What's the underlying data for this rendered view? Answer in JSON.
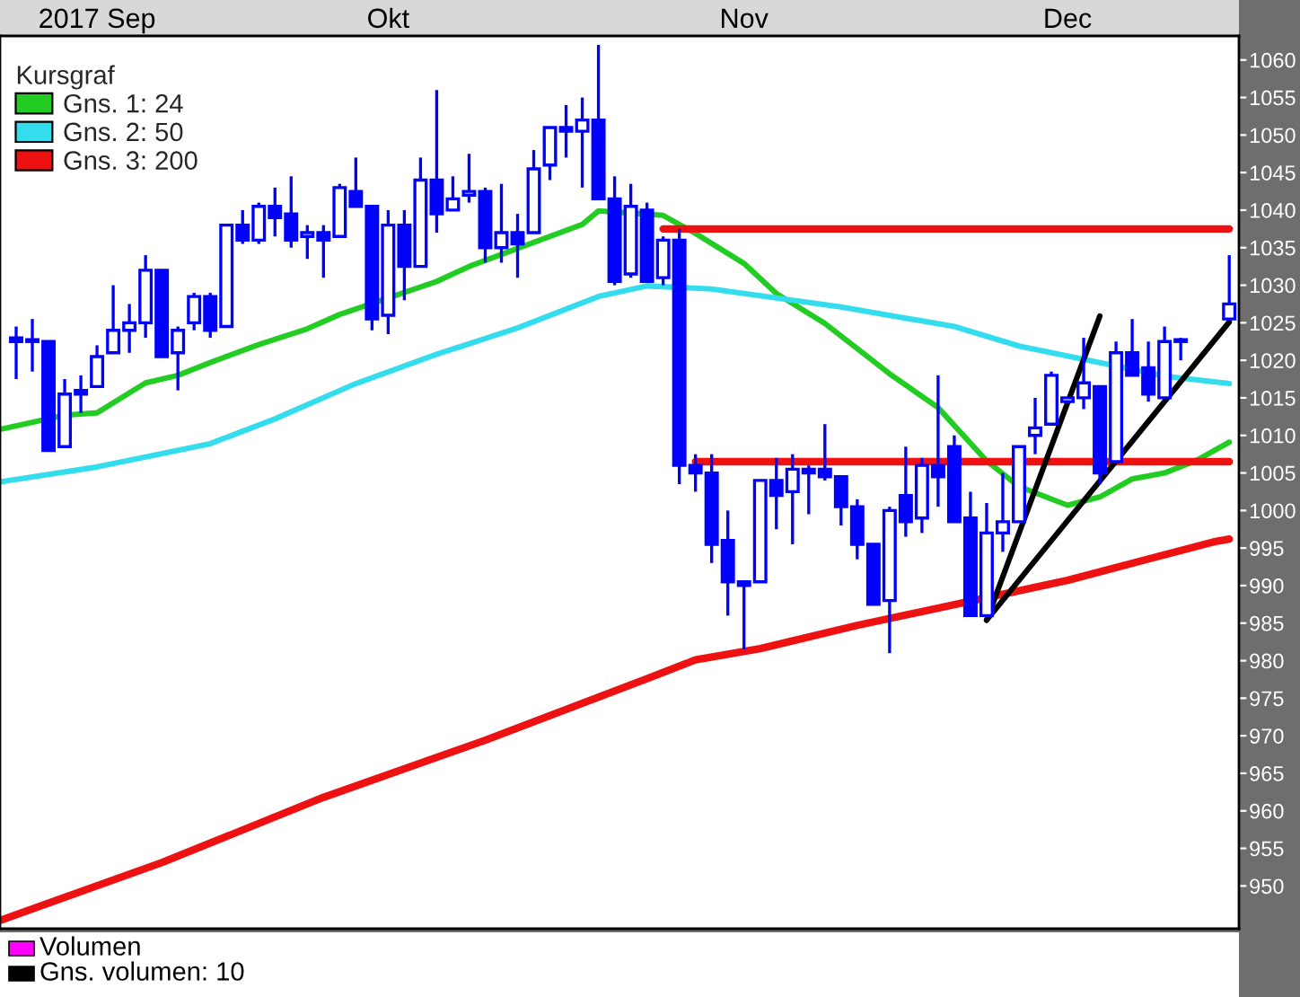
{
  "chart_data": {
    "type": "candlestick",
    "categories": [
      null,
      null,
      null,
      null,
      null,
      null,
      "2017 Sep",
      null,
      null,
      null,
      null,
      null,
      null,
      null,
      null,
      null,
      null,
      null,
      null,
      null,
      null,
      null,
      null,
      null,
      "Okt",
      null,
      null,
      null,
      null,
      null,
      null,
      null,
      null,
      null,
      null,
      null,
      null,
      null,
      null,
      null,
      null,
      null,
      null,
      null,
      null,
      null,
      "Nov",
      null,
      null,
      null,
      null,
      null,
      null,
      null,
      null,
      null,
      null,
      null,
      null,
      null,
      null,
      null,
      null,
      null,
      null,
      null,
      "Dec",
      null,
      null,
      null,
      null,
      null,
      null,
      null,
      null,
      null,
      null
    ],
    "ohlc": [
      null,
      [
        1023,
        1024.5,
        1017.5,
        1022.5
      ],
      [
        1022.5,
        1025.5,
        1018.5,
        1022.5
      ],
      [
        1022.5,
        1022.5,
        1008,
        1008
      ],
      [
        1008.5,
        1017.5,
        1008.5,
        1015.5
      ],
      [
        1016,
        1018,
        1013,
        1015.5
      ],
      [
        1016.5,
        1022,
        1016.5,
        1020.5
      ],
      [
        1021,
        1030,
        1021,
        1024
      ],
      [
        1024,
        1027.5,
        1021,
        1025
      ],
      [
        1025,
        1034,
        1023,
        1032
      ],
      [
        1032,
        1032,
        1020.5,
        1020.5
      ],
      [
        1021,
        1024.5,
        1016,
        1024
      ],
      [
        1025,
        1029,
        1024,
        1028.5
      ],
      [
        1028.5,
        1029,
        1023,
        1024
      ],
      [
        1024.5,
        1038,
        1024.5,
        1038
      ],
      [
        1038,
        1040,
        1035.5,
        1036
      ],
      [
        1036,
        1041,
        1035.5,
        1040.5
      ],
      [
        1040.5,
        1043,
        1036.5,
        1039
      ],
      [
        1039.5,
        1044.5,
        1035,
        1036
      ],
      [
        1036.5,
        1038,
        1033.5,
        1037
      ],
      [
        1037,
        1038,
        1031,
        1036
      ],
      [
        1036.5,
        1043.5,
        1036.5,
        1043
      ],
      [
        1042.5,
        1047,
        1040.5,
        1040.5
      ],
      [
        1040.5,
        1040.5,
        1024,
        1025.5
      ],
      [
        1026,
        1040,
        1023.5,
        1038
      ],
      [
        1038,
        1040,
        1028,
        1032.5
      ],
      [
        1032.5,
        1047,
        1032.5,
        1044
      ],
      [
        1044,
        1056,
        1037,
        1039.5
      ],
      [
        1040,
        1044.5,
        1040,
        1041.5
      ],
      [
        1042,
        1047.5,
        1041,
        1042.5
      ],
      [
        1042.5,
        1043,
        1033,
        1035
      ],
      [
        1035,
        1043.5,
        1033,
        1037
      ],
      [
        1037,
        1039.5,
        1031,
        1035.5
      ],
      [
        1037,
        1048,
        1037,
        1045.5
      ],
      [
        1046,
        1051,
        1044,
        1051
      ],
      [
        1051,
        1054,
        1047,
        1050.5
      ],
      [
        1050.5,
        1055,
        1043,
        1052
      ],
      [
        1052,
        1062,
        1041.5,
        1041.5
      ],
      [
        1041.5,
        1044.5,
        1030,
        1030.5
      ],
      [
        1031.5,
        1043.5,
        1031,
        1040.5
      ],
      [
        1040,
        1041,
        1030.5,
        1030.5
      ],
      [
        1031,
        1036.5,
        1030,
        1036
      ],
      [
        1036,
        1037.5,
        1003.5,
        1006
      ],
      [
        1006,
        1007.5,
        1002.5,
        1005
      ],
      [
        1005,
        1007.5,
        993,
        995.5
      ],
      [
        996,
        1000,
        986,
        990.5
      ],
      [
        990.5,
        990.5,
        981.5,
        990
      ],
      [
        990.5,
        1004,
        990.5,
        1004
      ],
      [
        1004,
        1007,
        997.5,
        1002
      ],
      [
        1002.5,
        1007.5,
        995.5,
        1005.5
      ],
      [
        1005.5,
        1006,
        999.5,
        1005
      ],
      [
        1005.5,
        1011.5,
        1004,
        1004.5
      ],
      [
        1004.5,
        1004.5,
        998,
        1000.5
      ],
      [
        1000.5,
        1001.5,
        993.5,
        995.5
      ],
      [
        995.5,
        995.5,
        987.5,
        987.5
      ],
      [
        988,
        1000.5,
        981,
        1000
      ],
      [
        1002,
        1008.5,
        996.5,
        998.5
      ],
      [
        999,
        1007,
        997,
        1006
      ],
      [
        1006,
        1018,
        1000.5,
        1004.5
      ],
      [
        1008.5,
        1010,
        998.5,
        998.5
      ],
      [
        999,
        1002.5,
        986,
        986
      ],
      [
        986,
        1001,
        986,
        997
      ],
      [
        997,
        1005,
        994.5,
        998.5
      ],
      [
        998.5,
        1008.5,
        998.5,
        1008.5
      ],
      [
        1010,
        1015,
        1007.5,
        1011
      ],
      [
        1011.5,
        1018.5,
        1011.5,
        1018
      ],
      [
        1014.5,
        1015,
        1014.5,
        1015
      ],
      [
        1015,
        1023,
        1013.5,
        1017
      ],
      [
        1016.5,
        1016.5,
        1003.5,
        1005
      ],
      [
        1006.5,
        1022.5,
        1006.5,
        1021
      ],
      [
        1021,
        1025.5,
        1018,
        1018
      ],
      [
        1019,
        1022.5,
        1014.5,
        1015.5
      ],
      [
        1015,
        1024.5,
        1015,
        1022.5
      ],
      [
        1022.5,
        1023,
        1020,
        1022.5
      ],
      null,
      null,
      [
        1025.5,
        1034,
        1025.5,
        1027.5
      ]
    ],
    "color": "#0000ff",
    "series": [
      {
        "name": "Gns. 1: 24",
        "type": "line",
        "color": "#22cc22",
        "values": [
          1010.8,
          null,
          null,
          null,
          1012.7,
          null,
          1013,
          null,
          null,
          1017,
          null,
          1018,
          null,
          1019.7,
          null,
          null,
          1022.1,
          null,
          null,
          1024.2,
          null,
          1026.1,
          null,
          null,
          null,
          null,
          null,
          1030.5,
          null,
          1032.5,
          null,
          null,
          null,
          1035.7,
          null,
          null,
          1038.1,
          1039.9,
          null,
          null,
          null,
          1039.3,
          null,
          1036.9,
          null,
          null,
          1032.9,
          null,
          1028.9,
          null,
          null,
          1024.9,
          null,
          null,
          null,
          1018.2,
          null,
          null,
          1013.7,
          null,
          null,
          1006.6,
          null,
          1003.2,
          null,
          null,
          1000.7,
          null,
          1001.8,
          null,
          1004.2,
          null,
          1005,
          null,
          1006.7,
          null,
          1009.1
        ]
      },
      {
        "name": "Gns. 2: 50",
        "type": "line",
        "color": "#33ddee",
        "values": [
          1003.8,
          null,
          null,
          null,
          null,
          null,
          1005.8,
          null,
          null,
          null,
          null,
          null,
          null,
          1008.9,
          null,
          null,
          null,
          1012.2,
          null,
          null,
          null,
          null,
          1016.9,
          null,
          null,
          null,
          null,
          1020.8,
          null,
          null,
          null,
          null,
          1024.3,
          null,
          null,
          null,
          null,
          1028.5,
          null,
          null,
          1029.9,
          null,
          null,
          null,
          1029.5,
          null,
          null,
          null,
          1028.3,
          null,
          null,
          null,
          1027.1,
          null,
          null,
          null,
          null,
          null,
          null,
          1024.5,
          null,
          null,
          null,
          1021.9,
          null,
          null,
          null,
          null,
          1019.7,
          null,
          null,
          null,
          1017.9,
          null,
          null,
          null,
          1016.9
        ]
      },
      {
        "name": "Gns. 3: 200",
        "type": "line",
        "color": "#ee1111",
        "values": [
          945.4,
          null,
          null,
          null,
          null,
          null,
          null,
          null,
          null,
          null,
          953.1,
          null,
          null,
          null,
          null,
          null,
          null,
          null,
          null,
          null,
          961.8,
          null,
          null,
          null,
          null,
          null,
          null,
          null,
          null,
          null,
          969.4,
          null,
          null,
          null,
          null,
          null,
          null,
          null,
          null,
          null,
          977.6,
          null,
          null,
          980.1,
          null,
          null,
          null,
          981.6,
          null,
          null,
          null,
          null,
          null,
          984.7,
          null,
          null,
          null,
          null,
          null,
          null,
          null,
          null,
          null,
          null,
          null,
          null,
          990.7,
          null,
          null,
          null,
          null,
          null,
          null,
          null,
          null,
          995.8,
          996.2
        ]
      },
      {
        "type": "line",
        "color": "#ee1111",
        "values": [
          null,
          null,
          null,
          null,
          null,
          null,
          null,
          null,
          null,
          null,
          null,
          null,
          null,
          null,
          null,
          null,
          null,
          null,
          null,
          null,
          null,
          null,
          null,
          null,
          null,
          null,
          null,
          null,
          null,
          null,
          null,
          null,
          null,
          null,
          null,
          null,
          null,
          null,
          null,
          null,
          null,
          1037.5,
          null,
          null,
          null,
          null,
          null,
          null,
          null,
          null,
          null,
          null,
          null,
          null,
          null,
          null,
          null,
          null,
          null,
          null,
          null,
          null,
          null,
          null,
          null,
          null,
          null,
          null,
          null,
          null,
          null,
          null,
          null,
          null,
          null,
          null,
          1037.5
        ]
      },
      {
        "type": "line",
        "color": "#ee1111",
        "values": [
          null,
          null,
          null,
          null,
          null,
          null,
          null,
          null,
          null,
          null,
          null,
          null,
          null,
          null,
          null,
          null,
          null,
          null,
          null,
          null,
          null,
          null,
          null,
          null,
          null,
          null,
          null,
          null,
          null,
          null,
          null,
          null,
          null,
          null,
          null,
          null,
          null,
          null,
          null,
          null,
          null,
          null,
          null,
          1006.5,
          null,
          null,
          null,
          null,
          null,
          null,
          null,
          null,
          null,
          null,
          null,
          null,
          null,
          null,
          null,
          null,
          null,
          null,
          null,
          null,
          null,
          null,
          null,
          null,
          null,
          null,
          null,
          null,
          null,
          null,
          null,
          null,
          1006.5
        ]
      },
      {
        "type": "line",
        "color": "#000000",
        "values": [
          null,
          null,
          null,
          null,
          null,
          null,
          null,
          null,
          null,
          null,
          null,
          null,
          null,
          null,
          null,
          null,
          null,
          null,
          null,
          null,
          null,
          null,
          null,
          null,
          null,
          null,
          null,
          null,
          null,
          null,
          null,
          null,
          null,
          null,
          null,
          null,
          null,
          null,
          null,
          null,
          null,
          null,
          null,
          null,
          null,
          null,
          null,
          null,
          null,
          null,
          null,
          null,
          null,
          null,
          null,
          null,
          null,
          null,
          null,
          null,
          null,
          985.4,
          null,
          null,
          null,
          null,
          null,
          null,
          1025.9,
          null,
          null,
          null,
          null,
          null,
          null,
          null,
          null
        ]
      },
      {
        "type": "line",
        "color": "#000000",
        "values": [
          null,
          null,
          null,
          null,
          null,
          null,
          null,
          null,
          null,
          null,
          null,
          null,
          null,
          null,
          null,
          null,
          null,
          null,
          null,
          null,
          null,
          null,
          null,
          null,
          null,
          null,
          null,
          null,
          null,
          null,
          null,
          null,
          null,
          null,
          null,
          null,
          null,
          null,
          null,
          null,
          null,
          null,
          null,
          null,
          null,
          null,
          null,
          null,
          null,
          null,
          null,
          null,
          null,
          null,
          null,
          null,
          null,
          null,
          null,
          null,
          null,
          985.4,
          null,
          null,
          null,
          null,
          null,
          null,
          null,
          null,
          null,
          null,
          null,
          null,
          null,
          null,
          1025.1
        ]
      }
    ],
    "legend_title": "Kursgraf",
    "legend": "top left",
    "ylim": [
      944.3,
      1063.2
    ],
    "yticks": [
      950,
      955,
      960,
      965,
      970,
      975,
      980,
      985,
      990,
      995,
      1000,
      1005,
      1010,
      1015,
      1020,
      1025,
      1030,
      1035,
      1040,
      1045,
      1050,
      1055,
      1060
    ],
    "grid": false,
    "annotations": [
      "Volumen",
      "Gns. volumen: 10"
    ]
  }
}
